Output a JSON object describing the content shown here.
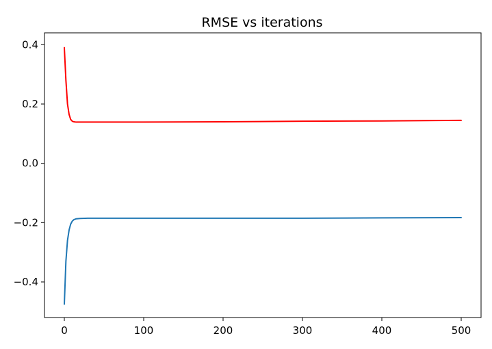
{
  "chart_data": {
    "type": "line",
    "title": "RMSE vs iterations",
    "xlabel": "",
    "ylabel": "",
    "xlim": [
      -25,
      525
    ],
    "ylim": [
      -0.52,
      0.44
    ],
    "xticks": [
      0,
      100,
      200,
      300,
      400,
      500
    ],
    "xtick_labels": [
      "0",
      "100",
      "200",
      "300",
      "400",
      "500"
    ],
    "yticks": [
      0.4,
      0.2,
      0.0,
      -0.2,
      -0.4
    ],
    "ytick_labels": [
      "0.4",
      "0.2",
      "0.0",
      "−0.2",
      "−0.4"
    ],
    "grid": false,
    "legend": "none",
    "series": [
      {
        "color": "#ff0000",
        "x": [
          0,
          2,
          4,
          6,
          8,
          10,
          12,
          15,
          20,
          30,
          50,
          100,
          200,
          300,
          400,
          500
        ],
        "y": [
          0.39,
          0.28,
          0.2,
          0.165,
          0.148,
          0.142,
          0.14,
          0.139,
          0.139,
          0.139,
          0.139,
          0.139,
          0.14,
          0.142,
          0.143,
          0.145
        ]
      },
      {
        "color": "#1f77b4",
        "x": [
          0,
          2,
          4,
          6,
          8,
          10,
          12,
          15,
          20,
          30,
          50,
          100,
          200,
          300,
          400,
          500
        ],
        "y": [
          -0.475,
          -0.33,
          -0.26,
          -0.225,
          -0.205,
          -0.195,
          -0.19,
          -0.187,
          -0.186,
          -0.185,
          -0.185,
          -0.185,
          -0.185,
          -0.185,
          -0.184,
          -0.183
        ]
      }
    ]
  }
}
